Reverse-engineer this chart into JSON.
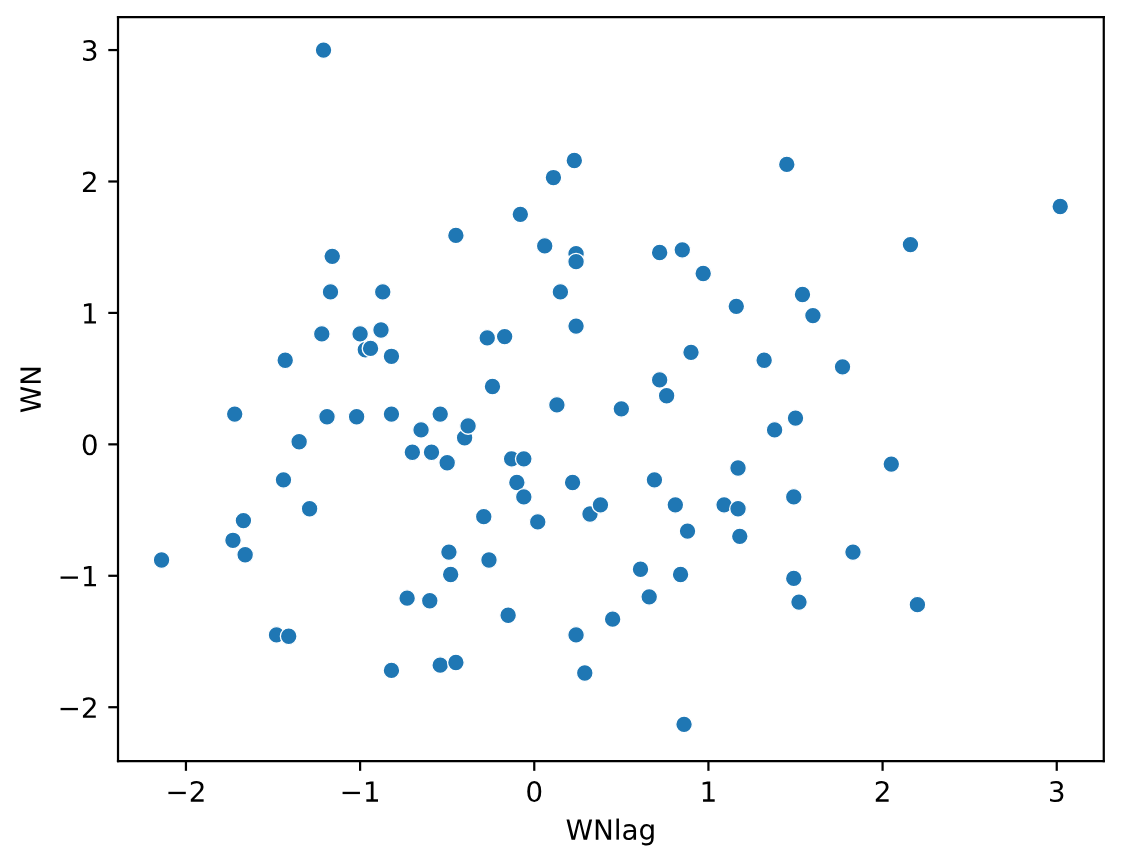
{
  "chart_data": {
    "type": "scatter",
    "xlabel": "WNlag",
    "ylabel": "WN",
    "x": [
      -1.21,
      -2.14,
      -1.73,
      -1.72,
      -1.67,
      -1.66,
      -1.44,
      -1.43,
      -1.35,
      -1.29,
      -1.48,
      -1.41,
      -1.22,
      -1.19,
      -1.17,
      -1.16,
      -1.02,
      -1.0,
      -0.97,
      -0.94,
      -0.87,
      -0.88,
      -0.82,
      -0.82,
      -0.82,
      -0.73,
      -0.7,
      -0.65,
      -0.6,
      -0.59,
      -0.54,
      -0.54,
      -0.5,
      -0.49,
      -0.48,
      -0.45,
      -0.45,
      -0.4,
      -0.38,
      -0.29,
      -0.27,
      -0.26,
      -0.24,
      -0.17,
      -0.13,
      -0.15,
      -0.1,
      -0.08,
      -0.06,
      -0.06,
      0.02,
      0.06,
      0.11,
      0.13,
      0.15,
      0.22,
      0.23,
      0.24,
      0.24,
      0.24,
      0.24,
      0.29,
      0.32,
      0.38,
      0.45,
      0.5,
      0.61,
      0.66,
      0.69,
      0.72,
      0.72,
      0.76,
      0.81,
      0.85,
      0.84,
      0.86,
      0.88,
      0.9,
      0.97,
      1.09,
      1.17,
      1.16,
      1.17,
      1.18,
      1.32,
      1.38,
      1.45,
      1.49,
      1.49,
      1.5,
      1.52,
      1.54,
      1.6,
      1.77,
      1.83,
      2.05,
      2.16,
      2.2,
      3.02
    ],
    "values": [
      3.0,
      -0.88,
      -0.73,
      0.23,
      -0.58,
      -0.84,
      -0.27,
      0.64,
      0.02,
      -0.49,
      -1.45,
      -1.46,
      0.84,
      0.21,
      1.16,
      1.43,
      0.21,
      0.84,
      0.72,
      0.73,
      1.16,
      0.87,
      0.67,
      0.23,
      -1.72,
      -1.17,
      -0.06,
      0.11,
      -1.19,
      -0.06,
      0.23,
      -1.68,
      -0.14,
      -0.82,
      -0.99,
      -1.66,
      1.59,
      0.05,
      0.14,
      -0.55,
      0.81,
      -0.88,
      0.44,
      0.82,
      -0.11,
      -1.3,
      -0.29,
      1.75,
      -0.11,
      -0.4,
      -0.59,
      1.51,
      2.03,
      0.3,
      1.16,
      -0.29,
      2.16,
      1.45,
      1.39,
      0.9,
      -1.45,
      -1.74,
      -0.53,
      -0.46,
      -1.33,
      0.27,
      -0.95,
      -1.16,
      -0.27,
      1.46,
      0.49,
      0.37,
      -0.46,
      1.48,
      -0.99,
      -2.13,
      -0.66,
      0.7,
      1.3,
      -0.46,
      -0.18,
      1.05,
      -0.49,
      -0.7,
      0.64,
      0.11,
      2.13,
      -1.02,
      -0.4,
      0.2,
      -1.2,
      1.14,
      0.98,
      0.59,
      -0.82,
      -0.15,
      1.52,
      -1.22,
      1.81
    ],
    "color": "#1f77b4",
    "marker": "circle",
    "xlim": [
      -2.39,
      3.27
    ],
    "ylim": [
      -2.41,
      3.25
    ],
    "xticks": [
      {
        "value": -2,
        "label": "−2"
      },
      {
        "value": -1,
        "label": "−1"
      },
      0,
      1,
      2,
      3
    ],
    "yticks": [
      {
        "value": -2,
        "label": "−2"
      },
      {
        "value": -1,
        "label": "−1"
      },
      0,
      1,
      2,
      3
    ],
    "grid": false,
    "legend": false
  }
}
